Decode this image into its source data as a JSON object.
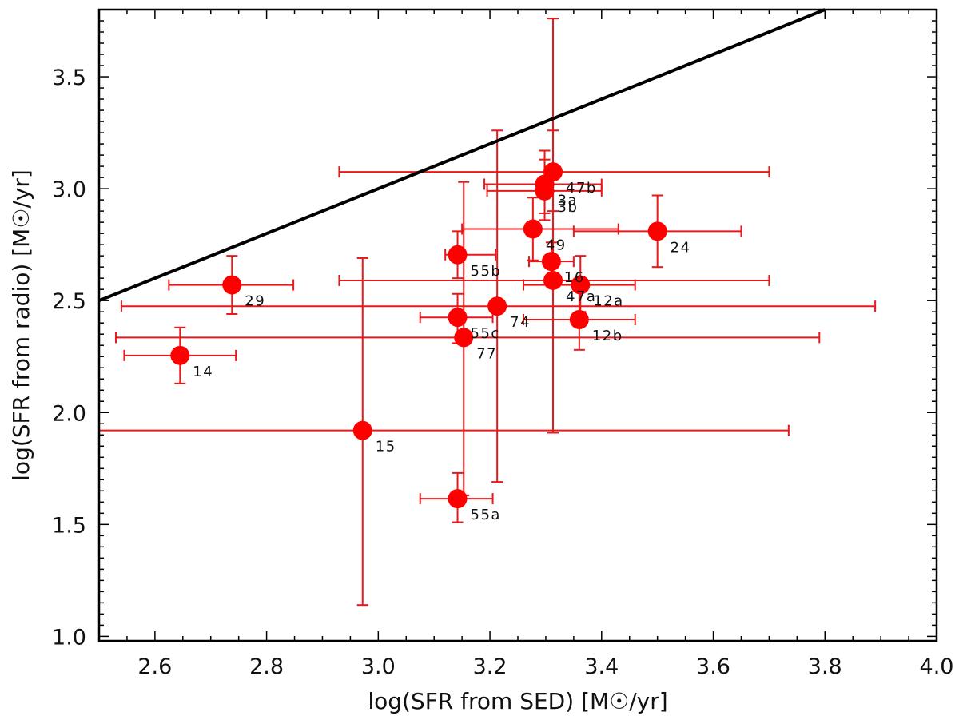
{
  "chart_data": {
    "type": "scatter",
    "title": "",
    "xlabel": "log(SFR from SED) [M☉/yr]",
    "ylabel": "log(SFR from radio) [M☉/yr]",
    "xlim": [
      2.5,
      4.0
    ],
    "ylim": [
      0.98,
      3.8
    ],
    "xticks": [
      2.6,
      2.8,
      3.0,
      3.2,
      3.4,
      3.6,
      3.8,
      4.0
    ],
    "xtick_labels": [
      "2.6",
      "2.8",
      "3.0",
      "3.2",
      "3.4",
      "3.6",
      "3.8",
      "4.0"
    ],
    "yticks": [
      1.0,
      1.5,
      2.0,
      2.5,
      3.0,
      3.5
    ],
    "ytick_labels": [
      "1.0",
      "1.5",
      "2.0",
      "2.5",
      "3.0",
      "3.5"
    ],
    "grid": false,
    "colors": {
      "points": "#ff0000",
      "errorbars": "#e8191b",
      "reference_line": "#000000"
    },
    "reference_line": {
      "name": "one-to-one",
      "x": [
        2.5,
        3.8
      ],
      "y": [
        2.5,
        3.8
      ]
    },
    "series": [
      {
        "name": "sources",
        "points": [
          {
            "label": "14",
            "x": 2.645,
            "y": 2.255,
            "xerr": [
              2.545,
              2.745
            ],
            "yerr": [
              2.13,
              2.38
            ]
          },
          {
            "label": "29",
            "x": 2.738,
            "y": 2.57,
            "xerr": [
              2.625,
              2.848
            ],
            "yerr": [
              2.44,
              2.7
            ]
          },
          {
            "label": "15",
            "x": 2.972,
            "y": 1.92,
            "xerr": [
              2.5,
              3.735
            ],
            "yerr": [
              1.14,
              2.69
            ]
          },
          {
            "label": "55b",
            "x": 3.142,
            "y": 2.705,
            "xerr": [
              3.12,
              3.21
            ],
            "yerr": [
              2.6,
              2.81
            ]
          },
          {
            "label": "55c",
            "x": 3.142,
            "y": 2.425,
            "xerr": [
              3.075,
              3.205
            ],
            "yerr": [
              2.31,
              2.53
            ]
          },
          {
            "label": "55a",
            "x": 3.142,
            "y": 1.615,
            "xerr": [
              3.075,
              3.205
            ],
            "yerr": [
              1.51,
              1.73
            ]
          },
          {
            "label": "77",
            "x": 3.153,
            "y": 2.335,
            "xerr": [
              2.53,
              3.79
            ],
            "yerr": [
              1.63,
              3.03
            ]
          },
          {
            "label": "74",
            "x": 3.213,
            "y": 2.475,
            "xerr": [
              2.54,
              3.89
            ],
            "yerr": [
              1.69,
              3.26
            ]
          },
          {
            "label": "49",
            "x": 3.277,
            "y": 2.82,
            "xerr": [
              3.15,
              3.43
            ],
            "yerr": [
              2.68,
              2.96
            ]
          },
          {
            "label": "3b",
            "x": 3.298,
            "y": 2.99,
            "xerr": [
              3.195,
              3.4
            ],
            "yerr": [
              2.86,
              3.13
            ]
          },
          {
            "label": "3a",
            "x": 3.298,
            "y": 3.02,
            "xerr": [
              3.19,
              3.4
            ],
            "yerr": [
              2.89,
              3.17
            ]
          },
          {
            "label": "47b",
            "x": 3.313,
            "y": 3.075,
            "xerr": [
              2.93,
              3.7
            ],
            "yerr": [
              2.9,
              3.26
            ]
          },
          {
            "label": "16",
            "x": 3.31,
            "y": 2.675,
            "xerr": [
              3.27,
              3.35
            ],
            "yerr": [
              2.59,
              2.76
            ]
          },
          {
            "label": "47a",
            "x": 3.313,
            "y": 2.59,
            "xerr": [
              2.93,
              3.7
            ],
            "yerr": [
              1.91,
              3.76
            ]
          },
          {
            "label": "12a",
            "x": 3.362,
            "y": 2.57,
            "xerr": [
              3.26,
              3.46
            ],
            "yerr": [
              2.45,
              2.7
            ]
          },
          {
            "label": "12b",
            "x": 3.36,
            "y": 2.415,
            "xerr": [
              3.26,
              3.46
            ],
            "yerr": [
              2.28,
              2.55
            ]
          },
          {
            "label": "24",
            "x": 3.5,
            "y": 2.81,
            "xerr": [
              3.35,
              3.65
            ],
            "yerr": [
              2.65,
              2.97
            ]
          }
        ]
      }
    ]
  }
}
